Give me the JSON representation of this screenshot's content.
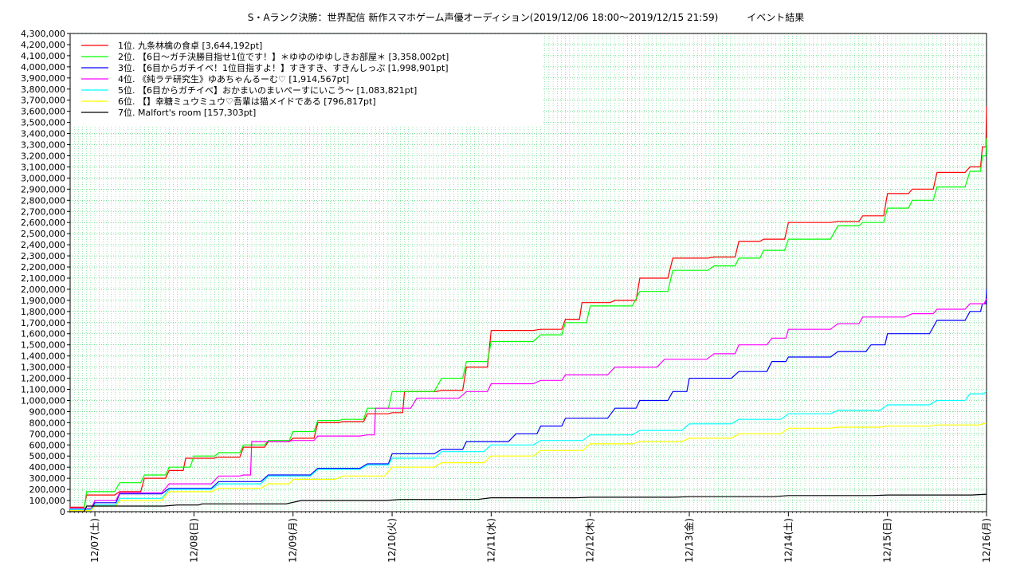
{
  "chart_data": {
    "type": "line",
    "title": "S・Aランク決勝：世界配信 新作スマホゲーム声優オーディション(2019/12/06 18:00〜2019/12/15 21:59)　　　イベント結果",
    "xlabel": "",
    "ylabel": "",
    "grid": true,
    "legend_position": "top-left",
    "x_ticks": [
      "12/07(土)",
      "12/08(日)",
      "12/09(月)",
      "12/10(火)",
      "12/11(水)",
      "12/12(木)",
      "12/13(金)",
      "12/14(土)",
      "12/15(日)",
      "12/16(月)"
    ],
    "x_range": [
      "2019-12-06 18:00",
      "2019-12-16 00:00"
    ],
    "ylim": [
      0,
      4300000
    ],
    "y_tick_step": 100000,
    "y_ticks": [
      "0",
      "100,000",
      "200,000",
      "300,000",
      "400,000",
      "500,000",
      "600,000",
      "700,000",
      "800,000",
      "900,000",
      "1,000,000",
      "1,100,000",
      "1,200,000",
      "1,300,000",
      "1,400,000",
      "1,500,000",
      "1,600,000",
      "1,700,000",
      "1,800,000",
      "1,900,000",
      "2,000,000",
      "2,100,000",
      "2,200,000",
      "2,300,000",
      "2,400,000",
      "2,500,000",
      "2,600,000",
      "2,700,000",
      "2,800,000",
      "2,900,000",
      "3,000,000",
      "3,100,000",
      "3,200,000",
      "3,300,000",
      "3,400,000",
      "3,500,000",
      "3,600,000",
      "3,700,000",
      "3,800,000",
      "3,900,000",
      "4,000,000",
      "4,100,000",
      "4,200,000",
      "4,300,000"
    ],
    "series": [
      {
        "name": "1位. 九条林檎の食卓 [3,644,192pt]",
        "color": "#ff0000",
        "points": [
          [
            "2019-12-06 18:00",
            40000
          ],
          [
            "2019-12-06 22:00",
            150000
          ],
          [
            "2019-12-07 06:00",
            180000
          ],
          [
            "2019-12-07 12:00",
            300000
          ],
          [
            "2019-12-07 18:00",
            370000
          ],
          [
            "2019-12-07 22:00",
            480000
          ],
          [
            "2019-12-08 06:00",
            490000
          ],
          [
            "2019-12-08 12:00",
            580000
          ],
          [
            "2019-12-08 18:00",
            630000
          ],
          [
            "2019-12-09 00:00",
            660000
          ],
          [
            "2019-12-09 06:00",
            800000
          ],
          [
            "2019-12-09 12:00",
            810000
          ],
          [
            "2019-12-09 18:00",
            880000
          ],
          [
            "2019-12-10 00:00",
            890000
          ],
          [
            "2019-12-10 03:00",
            1080000
          ],
          [
            "2019-12-10 12:00",
            1090000
          ],
          [
            "2019-12-10 18:00",
            1300000
          ],
          [
            "2019-12-11 00:00",
            1630000
          ],
          [
            "2019-12-11 12:00",
            1640000
          ],
          [
            "2019-12-11 18:00",
            1730000
          ],
          [
            "2019-12-11 22:00",
            1880000
          ],
          [
            "2019-12-12 06:00",
            1900000
          ],
          [
            "2019-12-12 12:00",
            2100000
          ],
          [
            "2019-12-12 20:00",
            2280000
          ],
          [
            "2019-12-13 06:00",
            2290000
          ],
          [
            "2019-12-13 12:00",
            2430000
          ],
          [
            "2019-12-13 18:00",
            2450000
          ],
          [
            "2019-12-14 00:00",
            2600000
          ],
          [
            "2019-12-14 12:00",
            2610000
          ],
          [
            "2019-12-14 18:00",
            2660000
          ],
          [
            "2019-12-15 00:00",
            2860000
          ],
          [
            "2019-12-15 06:00",
            2900000
          ],
          [
            "2019-12-15 12:00",
            3050000
          ],
          [
            "2019-12-15 20:00",
            3100000
          ],
          [
            "2019-12-15 23:00",
            3280000
          ],
          [
            "2019-12-16 00:00",
            3644192
          ]
        ]
      },
      {
        "name": "2位. 【6日〜ガチ決勝目指せ1位です！】＊ゆゆのゆゆしきお部屋＊ [3,358,002pt]",
        "color": "#00ff00",
        "points": [
          [
            "2019-12-06 18:00",
            30000
          ],
          [
            "2019-12-06 22:00",
            180000
          ],
          [
            "2019-12-07 06:00",
            260000
          ],
          [
            "2019-12-07 12:00",
            330000
          ],
          [
            "2019-12-07 18:00",
            400000
          ],
          [
            "2019-12-08 00:00",
            500000
          ],
          [
            "2019-12-08 06:00",
            530000
          ],
          [
            "2019-12-08 12:00",
            600000
          ],
          [
            "2019-12-08 18:00",
            640000
          ],
          [
            "2019-12-09 00:00",
            720000
          ],
          [
            "2019-12-09 06:00",
            820000
          ],
          [
            "2019-12-09 12:00",
            830000
          ],
          [
            "2019-12-09 18:00",
            930000
          ],
          [
            "2019-12-10 00:00",
            1080000
          ],
          [
            "2019-12-10 12:00",
            1200000
          ],
          [
            "2019-12-10 18:00",
            1350000
          ],
          [
            "2019-12-11 00:00",
            1530000
          ],
          [
            "2019-12-11 12:00",
            1590000
          ],
          [
            "2019-12-11 18:00",
            1700000
          ],
          [
            "2019-12-12 00:00",
            1850000
          ],
          [
            "2019-12-12 12:00",
            1980000
          ],
          [
            "2019-12-12 20:00",
            2170000
          ],
          [
            "2019-12-13 06:00",
            2210000
          ],
          [
            "2019-12-13 12:00",
            2280000
          ],
          [
            "2019-12-13 18:00",
            2350000
          ],
          [
            "2019-12-14 00:00",
            2450000
          ],
          [
            "2019-12-14 12:00",
            2570000
          ],
          [
            "2019-12-14 18:00",
            2600000
          ],
          [
            "2019-12-15 00:00",
            2730000
          ],
          [
            "2019-12-15 06:00",
            2800000
          ],
          [
            "2019-12-15 12:00",
            2920000
          ],
          [
            "2019-12-15 20:00",
            3060000
          ],
          [
            "2019-12-15 23:00",
            3200000
          ],
          [
            "2019-12-16 00:00",
            3358002
          ]
        ]
      },
      {
        "name": "3位. 【6目からガチイベ！1位目指すよ！】すきすき、すきんしっぷ [1,998,901pt]",
        "color": "#0000ff",
        "points": [
          [
            "2019-12-06 18:00",
            20000
          ],
          [
            "2019-12-07 00:00",
            80000
          ],
          [
            "2019-12-07 06:00",
            160000
          ],
          [
            "2019-12-07 18:00",
            210000
          ],
          [
            "2019-12-08 06:00",
            270000
          ],
          [
            "2019-12-08 18:00",
            330000
          ],
          [
            "2019-12-09 06:00",
            390000
          ],
          [
            "2019-12-09 18:00",
            430000
          ],
          [
            "2019-12-10 00:00",
            520000
          ],
          [
            "2019-12-10 12:00",
            560000
          ],
          [
            "2019-12-10 18:00",
            630000
          ],
          [
            "2019-12-11 06:00",
            700000
          ],
          [
            "2019-12-11 12:00",
            770000
          ],
          [
            "2019-12-11 18:00",
            840000
          ],
          [
            "2019-12-12 06:00",
            930000
          ],
          [
            "2019-12-12 12:00",
            1000000
          ],
          [
            "2019-12-12 20:00",
            1080000
          ],
          [
            "2019-12-13 00:00",
            1200000
          ],
          [
            "2019-12-13 12:00",
            1260000
          ],
          [
            "2019-12-13 20:00",
            1350000
          ],
          [
            "2019-12-14 00:00",
            1390000
          ],
          [
            "2019-12-14 12:00",
            1440000
          ],
          [
            "2019-12-14 20:00",
            1500000
          ],
          [
            "2019-12-15 00:00",
            1600000
          ],
          [
            "2019-12-15 12:00",
            1720000
          ],
          [
            "2019-12-15 20:00",
            1800000
          ],
          [
            "2019-12-15 23:00",
            1870000
          ],
          [
            "2019-12-16 00:00",
            1998901
          ]
        ]
      },
      {
        "name": "4位. 《純ラテ研究生》ゆあちゃんるーむ♡ [1,914,567pt]",
        "color": "#ff00ff",
        "points": [
          [
            "2019-12-06 18:00",
            30000
          ],
          [
            "2019-12-07 00:00",
            100000
          ],
          [
            "2019-12-07 06:00",
            170000
          ],
          [
            "2019-12-07 18:00",
            250000
          ],
          [
            "2019-12-08 06:00",
            320000
          ],
          [
            "2019-12-08 12:00",
            330000
          ],
          [
            "2019-12-08 14:00",
            630000
          ],
          [
            "2019-12-09 00:00",
            640000
          ],
          [
            "2019-12-09 06:00",
            680000
          ],
          [
            "2019-12-09 18:00",
            690000
          ],
          [
            "2019-12-09 20:00",
            930000
          ],
          [
            "2019-12-10 06:00",
            1020000
          ],
          [
            "2019-12-10 18:00",
            1080000
          ],
          [
            "2019-12-11 00:00",
            1150000
          ],
          [
            "2019-12-11 12:00",
            1180000
          ],
          [
            "2019-12-11 18:00",
            1230000
          ],
          [
            "2019-12-12 06:00",
            1300000
          ],
          [
            "2019-12-12 18:00",
            1370000
          ],
          [
            "2019-12-13 06:00",
            1420000
          ],
          [
            "2019-12-13 12:00",
            1500000
          ],
          [
            "2019-12-13 20:00",
            1560000
          ],
          [
            "2019-12-14 00:00",
            1640000
          ],
          [
            "2019-12-14 12:00",
            1690000
          ],
          [
            "2019-12-14 18:00",
            1750000
          ],
          [
            "2019-12-15 06:00",
            1780000
          ],
          [
            "2019-12-15 12:00",
            1820000
          ],
          [
            "2019-12-15 20:00",
            1870000
          ],
          [
            "2019-12-16 00:00",
            1914567
          ]
        ]
      },
      {
        "name": "5位. 【6目からガチイベ】おかまいのまいぺーすにいこう〜 [1,083,821pt]",
        "color": "#00ffff",
        "points": [
          [
            "2019-12-06 18:00",
            20000
          ],
          [
            "2019-12-07 00:00",
            60000
          ],
          [
            "2019-12-07 06:00",
            120000
          ],
          [
            "2019-12-07 18:00",
            200000
          ],
          [
            "2019-12-08 06:00",
            250000
          ],
          [
            "2019-12-08 18:00",
            320000
          ],
          [
            "2019-12-09 06:00",
            380000
          ],
          [
            "2019-12-09 18:00",
            420000
          ],
          [
            "2019-12-10 00:00",
            480000
          ],
          [
            "2019-12-10 12:00",
            540000
          ],
          [
            "2019-12-11 00:00",
            600000
          ],
          [
            "2019-12-11 12:00",
            640000
          ],
          [
            "2019-12-12 00:00",
            690000
          ],
          [
            "2019-12-12 12:00",
            730000
          ],
          [
            "2019-12-13 00:00",
            790000
          ],
          [
            "2019-12-13 12:00",
            830000
          ],
          [
            "2019-12-14 00:00",
            880000
          ],
          [
            "2019-12-14 12:00",
            910000
          ],
          [
            "2019-12-15 00:00",
            960000
          ],
          [
            "2019-12-15 12:00",
            1000000
          ],
          [
            "2019-12-15 20:00",
            1060000
          ],
          [
            "2019-12-16 00:00",
            1083821
          ]
        ]
      },
      {
        "name": "6位. 【】幸糖ミュウミュウ♡吾輩は猫メイドである [796,817pt]",
        "color": "#ffff00",
        "points": [
          [
            "2019-12-06 18:00",
            10000
          ],
          [
            "2019-12-07 00:00",
            50000
          ],
          [
            "2019-12-07 06:00",
            100000
          ],
          [
            "2019-12-07 18:00",
            180000
          ],
          [
            "2019-12-08 06:00",
            210000
          ],
          [
            "2019-12-08 18:00",
            250000
          ],
          [
            "2019-12-09 00:00",
            290000
          ],
          [
            "2019-12-09 12:00",
            320000
          ],
          [
            "2019-12-10 00:00",
            400000
          ],
          [
            "2019-12-10 12:00",
            440000
          ],
          [
            "2019-12-11 00:00",
            500000
          ],
          [
            "2019-12-11 12:00",
            550000
          ],
          [
            "2019-12-12 00:00",
            610000
          ],
          [
            "2019-12-12 12:00",
            630000
          ],
          [
            "2019-12-13 00:00",
            660000
          ],
          [
            "2019-12-13 12:00",
            700000
          ],
          [
            "2019-12-14 00:00",
            750000
          ],
          [
            "2019-12-14 12:00",
            760000
          ],
          [
            "2019-12-15 00:00",
            770000
          ],
          [
            "2019-12-15 12:00",
            780000
          ],
          [
            "2019-12-16 00:00",
            796817
          ]
        ]
      },
      {
        "name": "7位. Malfort's room [157,303pt]",
        "color": "#000000",
        "points": [
          [
            "2019-12-06 18:00",
            0
          ],
          [
            "2019-12-06 22:00",
            50000
          ],
          [
            "2019-12-07 20:00",
            60000
          ],
          [
            "2019-12-08 02:00",
            70000
          ],
          [
            "2019-12-09 02:00",
            100000
          ],
          [
            "2019-12-10 02:00",
            110000
          ],
          [
            "2019-12-11 00:00",
            125000
          ],
          [
            "2019-12-12 00:00",
            130000
          ],
          [
            "2019-12-13 00:00",
            135000
          ],
          [
            "2019-12-14 00:00",
            145000
          ],
          [
            "2019-12-15 00:00",
            150000
          ],
          [
            "2019-12-16 00:00",
            157303
          ]
        ]
      }
    ]
  }
}
